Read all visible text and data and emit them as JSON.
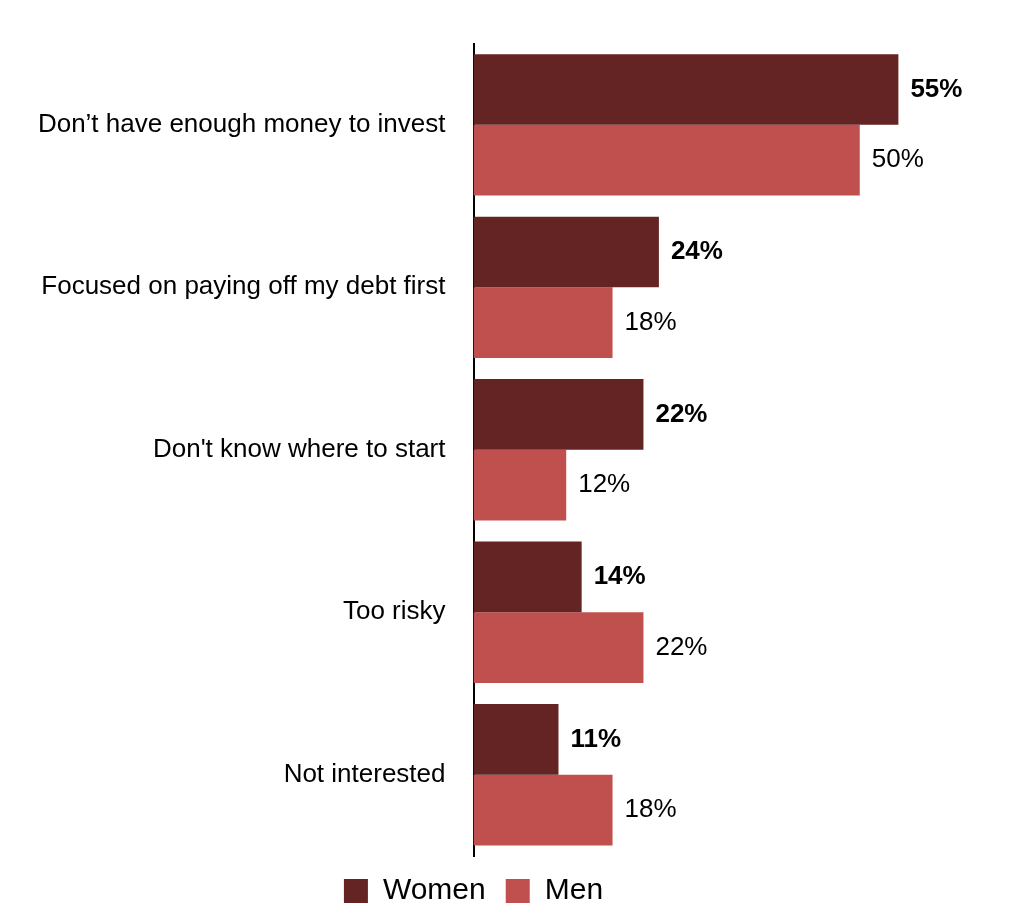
{
  "chart_data": {
    "type": "bar",
    "orientation": "horizontal",
    "categories": [
      "Don’t have enough money to invest",
      "Focused on paying off my debt first",
      "Don't know where to start",
      "Too risky",
      "Not interested"
    ],
    "series": [
      {
        "name": "Women",
        "color": "#632423",
        "values": [
          55,
          24,
          22,
          14,
          11
        ],
        "value_labels": [
          "55%",
          "24%",
          "22%",
          "14%",
          "11%"
        ]
      },
      {
        "name": "Men",
        "color": "#c0504d",
        "values": [
          50,
          18,
          12,
          22,
          18
        ],
        "value_labels": [
          "50%",
          "18%",
          "12%",
          "22%",
          "18%"
        ]
      }
    ],
    "tick_labels": "y",
    "grid": false,
    "legend": "bottom"
  }
}
